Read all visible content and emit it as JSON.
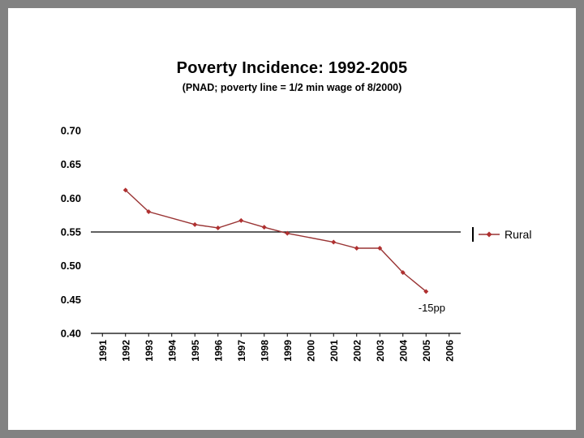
{
  "slide": {
    "title": "Poverty Incidence: 1992-2005",
    "subtitle": "(PNAD; poverty line = 1/2 min wage of 8/2000)"
  },
  "legend": {
    "label": "Rural"
  },
  "colors": {
    "series_line": "#993333",
    "series_marker": "#b03030",
    "axis": "#000000",
    "slide_background": "#ffffff",
    "frame_background": "#828282"
  },
  "chart_data": {
    "type": "line",
    "title": "Poverty Incidence: 1992-2005",
    "subtitle": "(PNAD; poverty line = 1/2 min wage of 8/2000)",
    "x": [
      1992,
      1993,
      1995,
      1996,
      1997,
      1998,
      1999,
      2001,
      2002,
      2003,
      2004,
      2005
    ],
    "series": [
      {
        "name": "Rural",
        "color": "#993333",
        "values": [
          0.612,
          0.58,
          0.561,
          0.556,
          0.567,
          0.557,
          0.548,
          0.535,
          0.526,
          0.526,
          0.49,
          0.462
        ]
      }
    ],
    "xlim": [
      1991,
      2006
    ],
    "ylim": [
      0.4,
      0.7
    ],
    "xticks": [
      1991,
      1992,
      1993,
      1994,
      1995,
      1996,
      1997,
      1998,
      1999,
      2000,
      2001,
      2002,
      2003,
      2004,
      2005,
      2006
    ],
    "yticks": [
      0.4,
      0.45,
      0.5,
      0.55,
      0.6,
      0.65,
      0.7
    ],
    "reference_line_y": 0.55,
    "annotation": {
      "text": "-15pp",
      "x": 2005.25,
      "y": 0.437
    },
    "legend": {
      "label": "Rural",
      "position": "right"
    },
    "grid": false
  }
}
